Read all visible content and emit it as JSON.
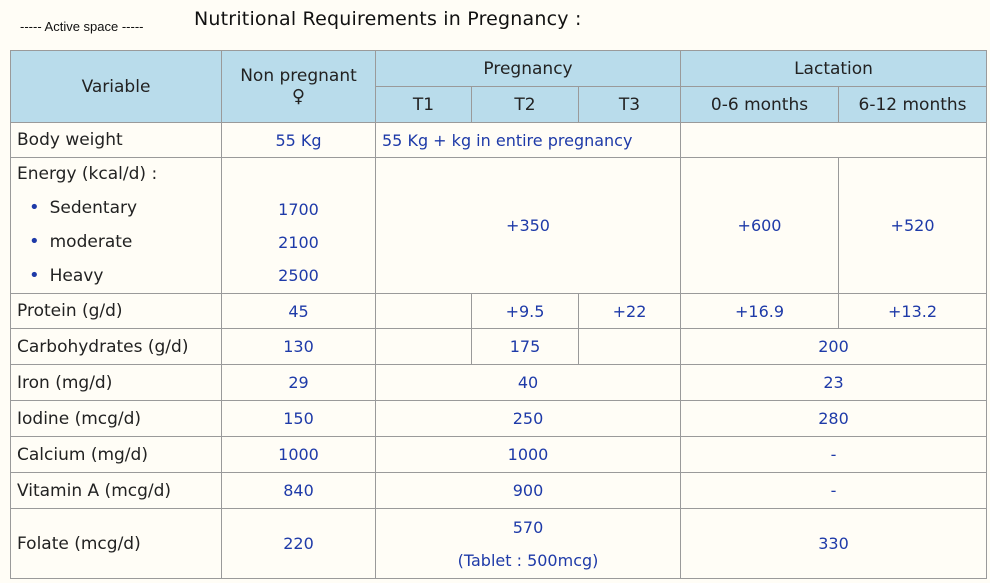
{
  "header": {
    "active_space": "----- Active space -----",
    "title": "Nutritional Requirements in Pregnancy :"
  },
  "table": {
    "head": {
      "variable": "Variable",
      "non_pregnant": "Non pregnant",
      "female_symbol": "♀",
      "pregnancy": "Pregnancy",
      "lactation": "Lactation",
      "t1": "T1",
      "t2": "T2",
      "t3": "T3",
      "lact_0_6": "0-6 months",
      "lact_6_12": "6-12 months"
    },
    "body_weight": {
      "label": "Body weight",
      "non_pregnant": "55 Kg",
      "pregnancy": "55 Kg + kg in entire pregnancy"
    },
    "energy": {
      "label": "Energy (kcal/d) :",
      "sedentary": "Sedentary",
      "moderate": "moderate",
      "heavy": "Heavy",
      "np_sedentary": "1700",
      "np_moderate": "2100",
      "np_heavy": "2500",
      "pregnancy": "+350",
      "lact_0_6": "+600",
      "lact_6_12": "+520"
    },
    "protein": {
      "label": "Protein (g/d)",
      "non_pregnant": "45",
      "t1": "",
      "t2": "+9.5",
      "t3": "+22",
      "lact_0_6": "+16.9",
      "lact_6_12": "+13.2"
    },
    "carbohydrates": {
      "label": "Carbohydrates (g/d)",
      "non_pregnant": "130",
      "t1": "",
      "t2": "175",
      "t3": "",
      "lactation": "200"
    },
    "iron": {
      "label": "Iron (mg/d)",
      "non_pregnant": "29",
      "pregnancy": "40",
      "lactation": "23"
    },
    "iodine": {
      "label": "Iodine (mcg/d)",
      "non_pregnant": "150",
      "pregnancy": "250",
      "lactation": "280"
    },
    "calcium": {
      "label": "Calcium (mg/d)",
      "non_pregnant": "1000",
      "pregnancy": "1000",
      "lactation": "-"
    },
    "vitamin_a": {
      "label": "Vitamin A (mcg/d)",
      "non_pregnant": "840",
      "pregnancy": "900",
      "lactation": "-"
    },
    "folate": {
      "label": "Folate (mcg/d)",
      "non_pregnant": "220",
      "pregnancy": "570",
      "pregnancy_note": "(Tablet : 500mcg)",
      "lactation": "330"
    }
  }
}
